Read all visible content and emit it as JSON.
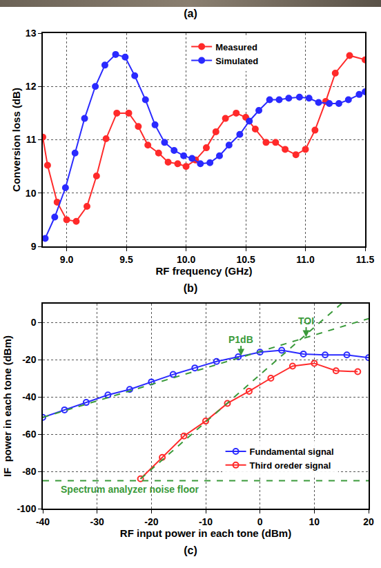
{
  "photo": {
    "caption": "(a)"
  },
  "chart_data": [
    {
      "type": "line",
      "caption": "(b)",
      "x_label": "RF frequency (GHz)",
      "y_label": "Conversion loss (dB)",
      "xlim": [
        8.8,
        11.5
      ],
      "xticks": [
        {
          "value": 9,
          "label": "9.0"
        },
        {
          "value": 9.5,
          "label": "9.5"
        },
        {
          "value": 10,
          "label": "10.0"
        },
        {
          "value": 10.5,
          "label": "10.5"
        },
        {
          "value": 11,
          "label": "11.0"
        },
        {
          "value": 11.5,
          "label": "11.5"
        }
      ],
      "ylim": [
        9,
        13
      ],
      "yticks": [
        9,
        10,
        11,
        12,
        13
      ],
      "grid": true,
      "legend": "top",
      "series": [
        {
          "name": "Measured",
          "color": "#ff2a2a",
          "marker": "circle",
          "line_style": "solid",
          "x": [
            8.8,
            8.84,
            8.92,
            9.0,
            9.08,
            9.17,
            9.25,
            9.33,
            9.42,
            9.52,
            9.6,
            9.68,
            9.77,
            9.85,
            9.93,
            10.0,
            10.08,
            10.17,
            10.25,
            10.33,
            10.42,
            10.5,
            10.58,
            10.67,
            10.75,
            10.83,
            10.92,
            11.0,
            11.08,
            11.17,
            11.25,
            11.37,
            11.5
          ],
          "values": [
            11.05,
            10.52,
            9.83,
            9.5,
            9.47,
            9.75,
            10.32,
            11.02,
            11.5,
            11.5,
            11.25,
            10.9,
            10.75,
            10.58,
            10.55,
            10.5,
            10.62,
            10.85,
            11.15,
            11.4,
            11.5,
            11.42,
            11.2,
            10.95,
            10.95,
            10.82,
            10.72,
            10.82,
            11.18,
            11.72,
            12.25,
            12.58,
            12.5
          ]
        },
        {
          "name": "Simulated",
          "color": "#2a2aff",
          "marker": "circle",
          "line_style": "solid",
          "x": [
            8.82,
            8.9,
            8.99,
            9.07,
            9.15,
            9.24,
            9.32,
            9.41,
            9.49,
            9.57,
            9.66,
            9.74,
            9.82,
            9.9,
            9.98,
            10.05,
            10.12,
            10.2,
            10.28,
            10.36,
            10.45,
            10.53,
            10.61,
            10.7,
            10.78,
            10.86,
            10.95,
            11.03,
            11.11,
            11.2,
            11.28,
            11.36,
            11.45,
            11.5
          ],
          "values": [
            9.15,
            9.55,
            10.1,
            10.75,
            11.4,
            12.0,
            12.4,
            12.6,
            12.55,
            12.2,
            11.75,
            11.28,
            10.95,
            10.8,
            10.7,
            10.65,
            10.55,
            10.57,
            10.7,
            10.9,
            11.1,
            11.35,
            11.55,
            11.75,
            11.75,
            11.78,
            11.8,
            11.78,
            11.7,
            11.68,
            11.68,
            11.75,
            11.85,
            11.9
          ]
        }
      ]
    },
    {
      "type": "line",
      "caption": "(c)",
      "x_label": "RF input power in each tone (dBm)",
      "y_label": "IF  power in each tone (dBm)",
      "xlim": [
        -40,
        20
      ],
      "xticks": [
        -40,
        -30,
        -20,
        -10,
        0,
        10,
        20
      ],
      "ylim": [
        -100,
        10
      ],
      "yticks": [
        -100,
        -80,
        -60,
        -40,
        -20,
        0
      ],
      "grid": true,
      "legend": "bottom-right",
      "series": [
        {
          "name": "Fundamental signal",
          "color": "#2a2aff",
          "marker": "circle-open",
          "line_style": "solid",
          "x": [
            -40,
            -36,
            -32,
            -28,
            -24,
            -20,
            -16,
            -12,
            -8,
            -4,
            0,
            4,
            8,
            12,
            16,
            20
          ],
          "values": [
            -51,
            -47,
            -43,
            -39,
            -36,
            -32,
            -28,
            -24.5,
            -21,
            -18.5,
            -16,
            -15,
            -17,
            -17.5,
            -17.5,
            -19
          ]
        },
        {
          "name": "Third oreder signal",
          "color": "#ff2a2a",
          "marker": "circle-open",
          "line_style": "solid",
          "x": [
            -22,
            -18,
            -14,
            -10,
            -6,
            -2,
            2,
            6,
            10,
            14,
            18
          ],
          "values": [
            -84,
            -72.5,
            -61,
            -53,
            -43.5,
            -37,
            -30,
            -23.5,
            -22,
            -26,
            -26.5
          ]
        },
        {
          "color": "#3a9a3a",
          "marker": "none",
          "line_style": "dashed",
          "x": [
            -40,
            20
          ],
          "values": [
            -51,
            2
          ]
        },
        {
          "color": "#3a9a3a",
          "marker": "none",
          "line_style": "dashed",
          "x": [
            -22,
            15
          ],
          "values": [
            -84,
            10
          ]
        }
      ],
      "reference_line": {
        "y": -85,
        "label": "Spectrum analyzer noise floor",
        "color": "#3a9a3a"
      },
      "annotations": [
        {
          "text": "P1dB",
          "x": -3.5,
          "y": -18,
          "color": "#3a9a3a"
        },
        {
          "text": "TOI",
          "x": 8.5,
          "y": -8,
          "color": "#3a9a3a"
        }
      ]
    }
  ]
}
